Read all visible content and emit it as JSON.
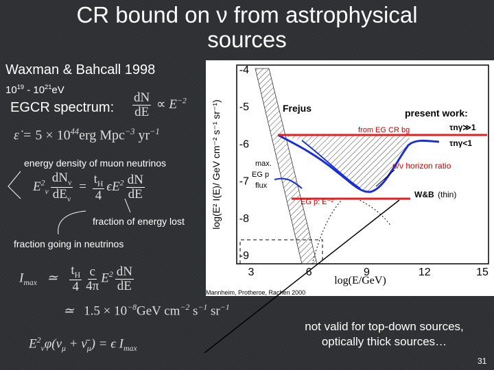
{
  "title": "CR bound on ν from astrophysical sources",
  "left": {
    "reference": "Waxman & Bahcall 1998",
    "energy_range": {
      "a": "10",
      "a_exp": "19",
      "mid": " - 10",
      "b_exp": "21",
      "unit": "eV"
    },
    "spectrum_label": "EGCR spectrum:",
    "spectrum_formula": {
      "num": "dN",
      "den": "dE",
      "rel": "∝",
      "base": "E",
      "exp": "−2"
    },
    "emissivity_formula": {
      "lhs": "ε̇",
      "eq": "=",
      "coef": "5 × 10",
      "exp": "44",
      "units": "erg Mpc",
      "mpc_exp": "−3",
      "yr": " yr",
      "yr_exp": "−1"
    },
    "neutrino_label": "energy density of muon neutrinos",
    "neutrino_formula": {
      "e": "E",
      "e_exp": "2",
      "e_sub": "ν",
      "num": "dN",
      "num_sub": "ν",
      "den": "dE",
      "den_sub": "ν",
      "eq": "=",
      "t_num": "t",
      "t_sub": "H",
      "t_den": "4",
      "eps": "ϵ",
      "e2": "E",
      "e2_exp": "2",
      "num2": "dN",
      "den2": "dE"
    },
    "energy_lost_label": "fraction of energy lost",
    "neutrino_fraction_label": "fraction going in neutrinos",
    "imax_formula": {
      "lhs": "I",
      "lhs_sub": "max",
      "approx": "≃",
      "t_num": "t",
      "t_sub": "H",
      "t_den": "4",
      "c_num": "c",
      "c_den": "4π",
      "e": "E",
      "e_exp": "2",
      "num": "dN",
      "den": "dE"
    },
    "imax_value": {
      "approx": "≃",
      "coef": "1.5 × 10",
      "exp": "−8",
      "units": "GeV cm",
      "cm_exp": "−2",
      "s": " s",
      "s_exp": "−1",
      "sr": " sr",
      "sr_exp": "−1"
    },
    "flux_formula": {
      "e": "E",
      "e_exp": "2",
      "e_sub": "ν",
      "phi": "φ(ν",
      "mu": "μ",
      "plus": " + ν̄",
      "mu2": "μ",
      ")": ")",
      "eq": "=",
      "eps": "ϵ",
      "i": "I",
      "i_sub": "max"
    }
  },
  "plot": {
    "y_label": "log(E² I(E)/ GeV cm⁻² s⁻¹ sr⁻¹)",
    "x_label": "log(E/GeV)",
    "yticks": [
      "-4",
      "-5",
      "-6",
      "-7",
      "-8",
      "-9"
    ],
    "xticks": [
      "3",
      "6",
      "9",
      "12",
      "15"
    ],
    "frejus": "Frejus",
    "present_work": "present work:",
    "tau_thick": "τnγ≫1",
    "tau_thin": "τnγ<1",
    "annotations": {
      "cr_bg": "from EG CR bg",
      "max_flux": [
        "max.",
        "EG p",
        "flux"
      ],
      "horizon": "p/ν horizon ratio",
      "eg_p": "EG p: E⁻²",
      "wb": "W&B",
      "thin": "(thin)"
    },
    "citation": "Mannheim, Protheroe, Rachen 2000"
  },
  "note": [
    "not valid for top-down sources,",
    "optically thick sources…"
  ],
  "page_number": "31"
}
